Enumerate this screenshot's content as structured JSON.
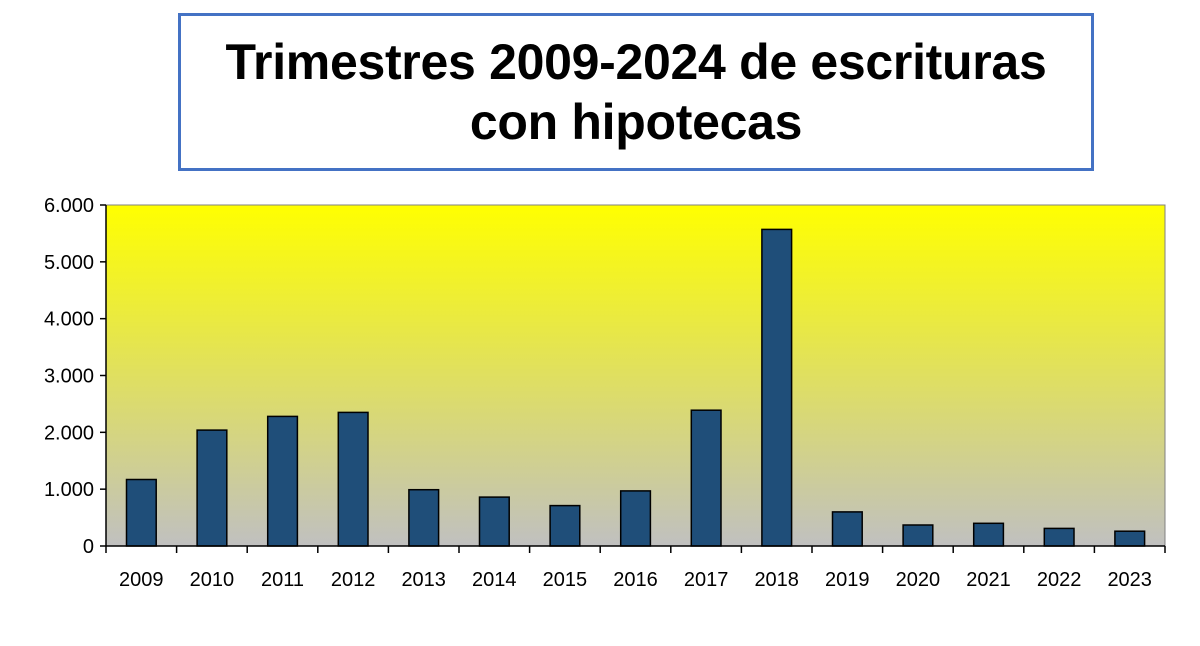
{
  "chart_data": {
    "type": "bar",
    "title": "Trimestres 2009-2024 de escrituras con hipotecas",
    "xlabel": "",
    "ylabel": "",
    "categories": [
      "2009",
      "2010",
      "2011",
      "2012",
      "2013",
      "2014",
      "2015",
      "2016",
      "2017",
      "2018",
      "2019",
      "2020",
      "2021",
      "2022",
      "2023"
    ],
    "values": [
      1170,
      2040,
      2280,
      2350,
      990,
      860,
      710,
      970,
      2390,
      5570,
      600,
      370,
      400,
      310,
      260
    ],
    "ylim": [
      0,
      6000
    ],
    "yticks": [
      0,
      1000,
      2000,
      3000,
      4000,
      5000,
      6000
    ],
    "ytick_labels": [
      "0",
      "1.000",
      "2.000",
      "3.000",
      "4.000",
      "5.000",
      "6.000"
    ],
    "grid": false,
    "legend": "none",
    "colors": {
      "bar_fill": "#1f4e79",
      "bar_stroke": "#000000",
      "plot_gradient_top": "#ffff00",
      "plot_gradient_bottom": "#c0c0c0",
      "title_border": "#4472c4"
    }
  }
}
